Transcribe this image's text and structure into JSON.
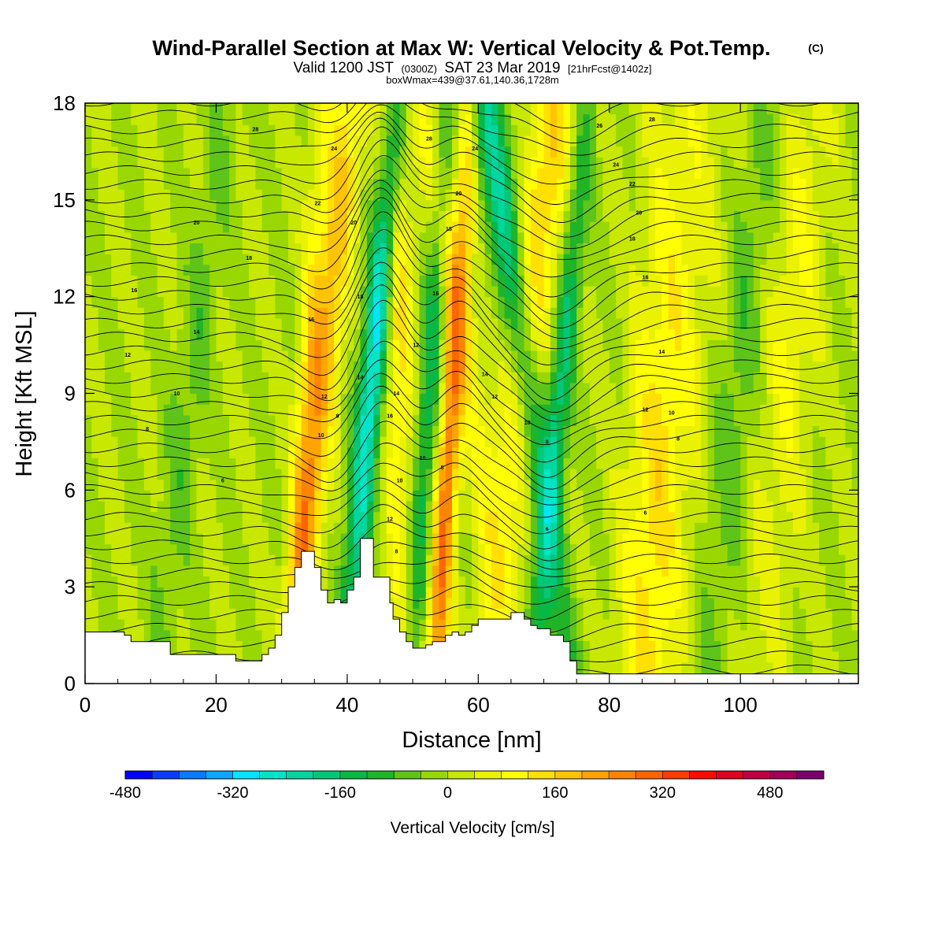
{
  "header": {
    "title": "Wind-Parallel Section at Max W: Vertical Velocity & Pot.Temp.",
    "title_mark": "(C)",
    "valid_prefix": "Valid 1200 JST",
    "valid_utc": "(0300Z)",
    "valid_date": "SAT 23 Mar 2019",
    "forecast": "[21hrFcst@1402z]",
    "boxwmax": "boxWmax=439@37.61,140.36,1728m"
  },
  "chart_data": {
    "type": "heatmap",
    "xlabel": "Distance [nm]",
    "ylabel": "Height [Kft MSL]",
    "xlim": [
      0,
      118
    ],
    "ylim": [
      0,
      18
    ],
    "x_ticks": [
      0,
      20,
      40,
      60,
      80,
      100
    ],
    "y_ticks": [
      0,
      3,
      6,
      9,
      12,
      15,
      18
    ],
    "x_tick_labels": [
      "0",
      "20",
      "40",
      "60",
      "80",
      "100"
    ],
    "y_tick_labels": [
      "0",
      "3",
      "6",
      "9",
      "12",
      "15",
      "18"
    ],
    "colorbar": {
      "label": "Vertical Velocity [cm/s]",
      "min": -480,
      "max": 560,
      "step": 40,
      "tick_values": [
        -480,
        -320,
        -160,
        0,
        160,
        320,
        480
      ],
      "tick_labels": [
        "-480",
        "-320",
        "-160",
        "0",
        "160",
        "320",
        "480"
      ],
      "colors": [
        "#0000ff",
        "#0a3cff",
        "#0a78ff",
        "#0aa8ff",
        "#00e5ff",
        "#00e5c8",
        "#00d6a0",
        "#00c878",
        "#08b846",
        "#20b428",
        "#5ec41a",
        "#98d800",
        "#c8e800",
        "#eaf200",
        "#ffff00",
        "#ffe000",
        "#ffc400",
        "#ffa400",
        "#ff8400",
        "#ff6400",
        "#ff3c00",
        "#ff0a00",
        "#e00020",
        "#c00040",
        "#a00058",
        "#7a0072"
      ]
    },
    "shaded_field": {
      "name": "Vertical Velocity",
      "units": "cm/s",
      "background": 0,
      "features": [
        {
          "x": 47.5,
          "y": 14.0,
          "w": 160,
          "tilt": -0.05,
          "halfwidth": 1.6
        },
        {
          "x": 44.5,
          "y": 11.0,
          "w": -300,
          "tilt": 0.45,
          "halfwidth": 1.4
        },
        {
          "x": 55.0,
          "y": 5.5,
          "w": 280,
          "tilt": 0.3,
          "halfwidth": 1.2
        },
        {
          "x": 56.0,
          "y": 13.0,
          "w": 100,
          "tilt": -0.8,
          "halfwidth": 1.8
        },
        {
          "x": 70.0,
          "y": 15.0,
          "w": 160,
          "tilt": 0.6,
          "halfwidth": 2.5
        },
        {
          "x": 37.5,
          "y": 12.0,
          "w": 180,
          "tilt": 0.5,
          "halfwidth": 1.8
        },
        {
          "x": 33.0,
          "y": 3.0,
          "w": 160,
          "tilt": 0.2,
          "halfwidth": 1.5
        },
        {
          "x": 63.0,
          "y": 15.5,
          "w": -200,
          "tilt": -0.7,
          "halfwidth": 2.0
        },
        {
          "x": 72.0,
          "y": 8.0,
          "w": -180,
          "tilt": 0.45,
          "halfwidth": 1.3
        },
        {
          "x": 52.5,
          "y": 9.0,
          "w": -150,
          "tilt": 0.3,
          "halfwidth": 1.2
        },
        {
          "x": 16.0,
          "y": 9.0,
          "w": -60,
          "tilt": 0.6,
          "halfwidth": 2.0
        },
        {
          "x": 90.0,
          "y": 10.0,
          "w": 70,
          "tilt": 0.4,
          "halfwidth": 4.0
        },
        {
          "x": 100.0,
          "y": 10.0,
          "w": -70,
          "tilt": 0.5,
          "halfwidth": 2.5
        },
        {
          "x": 108.0,
          "y": 12.0,
          "w": 80,
          "tilt": 0.4,
          "halfwidth": 3.0
        },
        {
          "x": 86.0,
          "y": 2.5,
          "w": 90,
          "tilt": 0.2,
          "halfwidth": 3.0
        }
      ]
    },
    "terrain": {
      "name": "Terrain",
      "x": [
        0,
        3,
        3,
        6,
        6,
        7,
        7,
        13,
        13,
        23,
        23,
        26,
        26,
        27,
        27,
        28,
        28,
        29,
        29,
        30,
        30,
        31,
        31,
        32,
        32,
        33,
        33,
        35,
        35,
        36,
        36,
        37,
        37,
        38,
        38,
        39,
        39,
        40,
        40,
        41,
        41,
        42,
        42,
        44,
        44,
        45,
        45,
        46,
        46,
        46.5,
        46.5,
        47,
        47,
        48,
        48,
        49,
        49,
        50,
        50,
        51,
        51,
        52,
        52,
        53,
        53,
        54,
        54,
        55,
        55,
        56,
        56,
        57,
        57,
        58,
        58,
        59,
        59,
        60,
        60,
        65,
        65,
        67,
        67,
        68,
        68,
        69,
        69,
        71,
        71,
        73,
        73,
        74,
        74,
        75,
        75,
        118
      ],
      "y": [
        1.6,
        1.6,
        1.6,
        1.6,
        1.5,
        1.5,
        1.3,
        1.3,
        0.9,
        0.9,
        0.7,
        0.7,
        0.7,
        0.7,
        0.9,
        0.9,
        1.1,
        1.1,
        1.5,
        1.5,
        2.2,
        2.2,
        3.0,
        3.0,
        3.6,
        3.6,
        4.1,
        4.1,
        3.6,
        3.6,
        2.9,
        2.9,
        2.5,
        2.5,
        2.6,
        2.6,
        2.5,
        2.5,
        2.9,
        2.9,
        3.3,
        3.3,
        4.5,
        4.5,
        3.3,
        3.3,
        3.3,
        3.3,
        3.3,
        3.3,
        2.5,
        2.5,
        2.0,
        2.0,
        1.6,
        1.6,
        1.3,
        1.3,
        1.1,
        1.1,
        1.1,
        1.1,
        1.2,
        1.2,
        1.3,
        1.3,
        1.3,
        1.3,
        1.5,
        1.5,
        1.6,
        1.6,
        1.5,
        1.5,
        1.6,
        1.6,
        1.8,
        1.8,
        2.0,
        2.0,
        2.2,
        2.2,
        2.0,
        2.0,
        1.8,
        1.8,
        1.7,
        1.7,
        1.5,
        1.5,
        1.3,
        1.3,
        0.7,
        0.7,
        0.3,
        0.3,
        0.3
      ]
    },
    "contours": {
      "name": "Potential Temperature",
      "levels": [
        1,
        2,
        3,
        4,
        5,
        6,
        7,
        8,
        9,
        10,
        11,
        12,
        13,
        14,
        15,
        16,
        17,
        18,
        19,
        20,
        21,
        22,
        23,
        24,
        25,
        26,
        27,
        28,
        29,
        30,
        31,
        32,
        33,
        34,
        35,
        36,
        37,
        38,
        39,
        40,
        41,
        42
      ],
      "wave_features": [
        {
          "x": 45.0,
          "y": 12.0,
          "dy": 2.2,
          "halfwidth": 3.5
        },
        {
          "x": 38.0,
          "y": 10.0,
          "dy": -0.8,
          "halfwidth": 4.0
        },
        {
          "x": 57.0,
          "y": 10.0,
          "dy": 1.0,
          "halfwidth": 3.0
        },
        {
          "x": 70.0,
          "y": 9.0,
          "dy": -1.0,
          "halfwidth": 4.0
        },
        {
          "x": 75.0,
          "y": 14.0,
          "dy": -0.8,
          "halfwidth": 5.0
        }
      ],
      "labels": [
        {
          "x": 26.0,
          "y": 17.2,
          "text": "28"
        },
        {
          "x": 38.0,
          "y": 16.6,
          "text": "24"
        },
        {
          "x": 35.5,
          "y": 14.9,
          "text": "22"
        },
        {
          "x": 17.0,
          "y": 14.3,
          "text": "20"
        },
        {
          "x": 25.0,
          "y": 13.2,
          "text": "18"
        },
        {
          "x": 7.5,
          "y": 12.2,
          "text": "16"
        },
        {
          "x": 17.0,
          "y": 10.9,
          "text": "14"
        },
        {
          "x": 6.5,
          "y": 10.2,
          "text": "12"
        },
        {
          "x": 14.0,
          "y": 9.0,
          "text": "10"
        },
        {
          "x": 9.5,
          "y": 7.9,
          "text": "8"
        },
        {
          "x": 21.0,
          "y": 6.3,
          "text": "6"
        },
        {
          "x": 41.0,
          "y": 14.3,
          "text": "20"
        },
        {
          "x": 42.0,
          "y": 12.0,
          "text": "18"
        },
        {
          "x": 34.5,
          "y": 11.3,
          "text": "16"
        },
        {
          "x": 42.0,
          "y": 9.5,
          "text": "14"
        },
        {
          "x": 36.5,
          "y": 8.9,
          "text": "12"
        },
        {
          "x": 38.5,
          "y": 8.3,
          "text": "8"
        },
        {
          "x": 36.0,
          "y": 7.7,
          "text": "10"
        },
        {
          "x": 46.5,
          "y": 8.3,
          "text": "16"
        },
        {
          "x": 47.5,
          "y": 9.0,
          "text": "14"
        },
        {
          "x": 48.0,
          "y": 6.3,
          "text": "10"
        },
        {
          "x": 46.5,
          "y": 5.1,
          "text": "12"
        },
        {
          "x": 47.5,
          "y": 4.1,
          "text": "8"
        },
        {
          "x": 52.5,
          "y": 16.9,
          "text": "28"
        },
        {
          "x": 59.5,
          "y": 16.6,
          "text": "24"
        },
        {
          "x": 57.0,
          "y": 15.2,
          "text": "20"
        },
        {
          "x": 55.5,
          "y": 14.1,
          "text": "18"
        },
        {
          "x": 53.5,
          "y": 12.1,
          "text": "16"
        },
        {
          "x": 50.5,
          "y": 10.5,
          "text": "12"
        },
        {
          "x": 51.5,
          "y": 7.0,
          "text": "10"
        },
        {
          "x": 54.5,
          "y": 6.7,
          "text": "8"
        },
        {
          "x": 61.0,
          "y": 9.6,
          "text": "14"
        },
        {
          "x": 62.5,
          "y": 8.9,
          "text": "12"
        },
        {
          "x": 67.5,
          "y": 8.1,
          "text": "10"
        },
        {
          "x": 70.5,
          "y": 7.5,
          "text": "8"
        },
        {
          "x": 70.5,
          "y": 4.8,
          "text": "6"
        },
        {
          "x": 78.5,
          "y": 17.3,
          "text": "26"
        },
        {
          "x": 86.5,
          "y": 17.5,
          "text": "28"
        },
        {
          "x": 81.0,
          "y": 16.1,
          "text": "24"
        },
        {
          "x": 83.5,
          "y": 15.5,
          "text": "22"
        },
        {
          "x": 84.5,
          "y": 14.6,
          "text": "20"
        },
        {
          "x": 83.5,
          "y": 13.8,
          "text": "18"
        },
        {
          "x": 85.5,
          "y": 12.6,
          "text": "16"
        },
        {
          "x": 88.0,
          "y": 10.3,
          "text": "14"
        },
        {
          "x": 85.5,
          "y": 8.5,
          "text": "12"
        },
        {
          "x": 89.5,
          "y": 8.4,
          "text": "10"
        },
        {
          "x": 90.5,
          "y": 7.6,
          "text": "8"
        },
        {
          "x": 85.5,
          "y": 5.3,
          "text": "6"
        }
      ]
    }
  }
}
